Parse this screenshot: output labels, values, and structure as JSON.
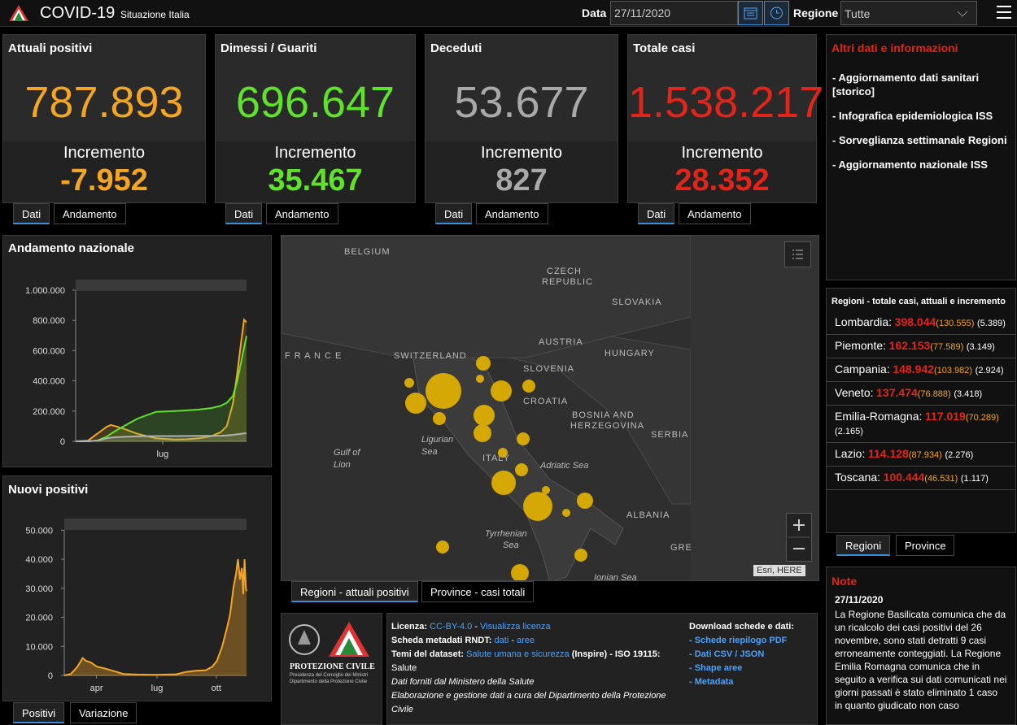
{
  "header": {
    "title": "COVID-19",
    "subtitle": "Situazione Italia",
    "date_label": "Data",
    "date_value": "27/11/2020",
    "region_label": "Regione",
    "region_value": "Tutte"
  },
  "cards": [
    {
      "title": "Attuali positivi",
      "value": "787.893",
      "increment_label": "Incremento",
      "increment": "-7.952",
      "color": "#f5a524",
      "tabs": [
        "Dati",
        "Andamento"
      ]
    },
    {
      "title": "Dimessi / Guariti",
      "value": "696.647",
      "increment_label": "Incremento",
      "increment": "35.467",
      "color": "#5fe22c",
      "tabs": [
        "Dati",
        "Andamento"
      ]
    },
    {
      "title": "Deceduti",
      "value": "53.677",
      "increment_label": "Incremento",
      "increment": "827",
      "color": "#a9a9a9",
      "tabs": [
        "Dati",
        "Andamento"
      ]
    },
    {
      "title": "Totale casi",
      "value": "1.538.217",
      "increment_label": "Incremento",
      "increment": "28.352",
      "color": "#e1251b",
      "tabs": [
        "Dati",
        "Andamento"
      ]
    }
  ],
  "info": {
    "title": "Altri dati e informazioni",
    "links": [
      "- Aggiornamento dati sanitari [storico]",
      "- Infografica epidemiologica ISS",
      "- Sorveglianza settimanale Regioni",
      "- Aggiornamento nazionale ISS"
    ]
  },
  "andamento": {
    "type": "line",
    "title": "Andamento nazionale",
    "x": [
      0,
      20,
      35,
      50,
      57,
      65,
      80,
      100,
      130,
      160,
      180,
      200,
      220,
      235,
      245,
      255,
      262,
      268,
      273,
      277
    ],
    "series": [
      {
        "color": "#f5a524",
        "values": [
          0,
          5000,
          50000,
          95000,
          108000,
          100000,
          80000,
          50000,
          20000,
          12000,
          14000,
          20000,
          35000,
          60000,
          100000,
          250000,
          450000,
          650000,
          805000,
          787893
        ]
      },
      {
        "color": "#5fe22c",
        "values": [
          0,
          0,
          5000,
          30000,
          50000,
          70000,
          105000,
          150000,
          195000,
          200000,
          205000,
          210000,
          220000,
          235000,
          255000,
          300000,
          400000,
          520000,
          620000,
          696647
        ]
      },
      {
        "color": "#b0b0b0",
        "values": [
          0,
          200,
          5000,
          20000,
          24000,
          27000,
          30000,
          33000,
          35000,
          35200,
          35400,
          35800,
          36000,
          37000,
          39000,
          43000,
          47000,
          50000,
          52000,
          53677
        ]
      }
    ],
    "xlim": [
      0,
      277
    ],
    "xticks": [
      {
        "value": 141,
        "label": "lug"
      }
    ],
    "ylim": [
      0,
      1070000
    ],
    "yticks": [
      0,
      {
        "value": 200000,
        "label": "200.000"
      },
      {
        "value": 400000,
        "label": "400.000"
      },
      {
        "value": 600000,
        "label": "600.000"
      },
      {
        "value": 800000,
        "label": "800.000"
      },
      {
        "value": 1000000,
        "label": "1.000.000"
      }
    ]
  },
  "nuovi_positivi": {
    "type": "area",
    "title": "Nuovi positivi",
    "x": [
      0,
      10,
      20,
      28,
      33,
      40,
      50,
      60,
      75,
      90,
      110,
      140,
      170,
      185,
      200,
      215,
      225,
      232,
      240,
      247,
      252,
      257,
      261,
      264,
      267,
      270,
      272,
      274,
      276,
      277
    ],
    "series": [
      {
        "color": "#f5a524",
        "values": [
          0,
          500,
          3000,
          6000,
          5000,
          4500,
          3000,
          2500,
          1500,
          500,
          300,
          200,
          400,
          1200,
          1600,
          1800,
          3000,
          5000,
          10000,
          16000,
          21000,
          30000,
          35000,
          40000,
          33000,
          37000,
          28000,
          40000,
          30000,
          29000
        ]
      }
    ],
    "xlim": [
      0,
      277
    ],
    "xticks": [
      {
        "value": 49,
        "label": "apr"
      },
      {
        "value": 141,
        "label": "lug"
      },
      {
        "value": 231,
        "label": "ott"
      }
    ],
    "ylim": [
      0,
      54000
    ],
    "yticks": [
      0,
      {
        "value": 10000,
        "label": "10.000"
      },
      {
        "value": 20000,
        "label": "20.000"
      },
      {
        "value": 30000,
        "label": "30.000"
      },
      {
        "value": 40000,
        "label": "40.000"
      },
      {
        "value": 50000,
        "label": "50.000"
      }
    ]
  },
  "nuovi_tabs": [
    "Positivi",
    "Variazione"
  ],
  "map": {
    "labels": [
      "BELGIUM",
      "CZECH",
      "REPUBLIC",
      "SLOVAKIA",
      "F R A N C E",
      "SWITZERLAND",
      "AUSTRIA",
      "HUNGARY",
      "SLOVENIA",
      "CROATIA",
      "BOSNIA AND",
      "HERZEGOVINA",
      "SERBIA",
      "Gulf of",
      "Lion",
      "Ligurian",
      "Sea",
      "ITALY",
      "Adriatic Sea",
      "ALBANIA",
      "Tyrrhenian",
      "Sea",
      "GRE",
      "Ionian Sea"
    ],
    "attribution": "Esri, HERE",
    "tabs": [
      "Regioni - attuali positivi",
      "Province - casi totali"
    ]
  },
  "regions": {
    "title": "Regioni - totale casi, attuali e incremento",
    "rows": [
      {
        "name": "Lombardia:",
        "total": "398.044",
        "current": "(130.555)",
        "increment": "(5.389)"
      },
      {
        "name": "Piemonte:",
        "total": "162.153",
        "current": "(77.589)",
        "increment": "(3.149)"
      },
      {
        "name": "Campania:",
        "total": "148.942",
        "current": "(103.982)",
        "increment": "(2.924)"
      },
      {
        "name": "Veneto:",
        "total": "137.474",
        "current": "(76.888)",
        "increment": "(3.418)"
      },
      {
        "name": "Emilia-Romagna:",
        "total": "117.019",
        "current": "(70.289)",
        "increment": "(2.165)"
      },
      {
        "name": "Lazio:",
        "total": "114.128",
        "current": "(87.934)",
        "increment": "(2.276)"
      },
      {
        "name": "Toscana:",
        "total": "100.444",
        "current": "(46.531)",
        "increment": "(1.117)"
      }
    ],
    "tabs": [
      "Regioni",
      "Province"
    ]
  },
  "logo": {
    "name": "PROTEZIONE CIVILE",
    "line1": "Presidenza del Consiglio dei Ministri",
    "line2": "Dipartimento della Protezione Civile"
  },
  "footer": {
    "license_label": "Licenza:",
    "license": "CC-BY-4.0",
    "sep1": "-",
    "license_link": "Visualizza licenza",
    "rndt_label": "Scheda metadati RNDT:",
    "rndt_dati": "dati",
    "sep2": "-",
    "rndt_aree": "aree",
    "themes_label": "Temi del dataset:",
    "themes_link": "Salute umana e sicurezza",
    "themes_rest": "(Inspire) - ISO 19115:",
    "themes_iso": "Salute",
    "source": "Dati forniti dal Ministero della Salute",
    "management": "Elaborazione e gestione dati a cura del Dipartimento della Protezione Civile",
    "download_title": "Download schede e dati:",
    "downloads": [
      "- Schede riepilogo PDF",
      "- Dati CSV / JSON",
      "- Shape aree",
      "- Metadata"
    ]
  },
  "note": {
    "title": "Note",
    "date": "27/11/2020",
    "text": "La Regione Basilicata comunica che da un ricalcolo dei casi positivi del 26 novembre, sono stati detratti 9 casi erroneamente conteggiati. La Regione Emilia Romagna comunica che in seguito a verifica sui dati comunicati nei giorni passati è stato eliminato 1 caso in quanto giudicato non caso"
  }
}
